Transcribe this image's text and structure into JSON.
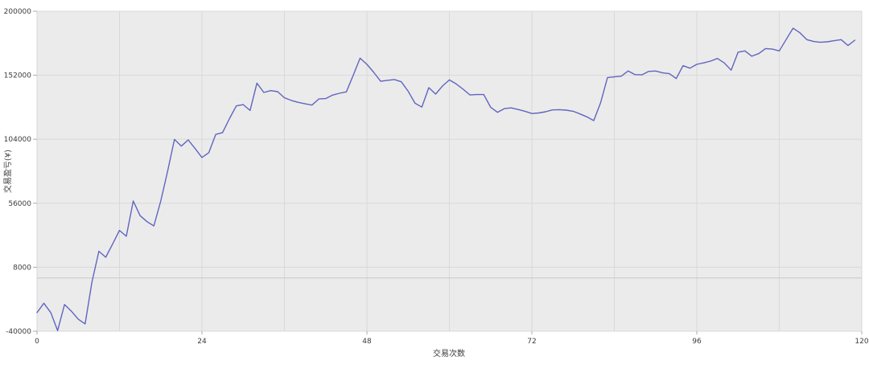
{
  "chart_data": {
    "type": "line",
    "title": "",
    "xlabel": "交易次数",
    "ylabel": "交易盈亏(¥)",
    "xlim": [
      0,
      120
    ],
    "ylim": [
      -40000,
      200000
    ],
    "xticks": [
      0,
      24,
      48,
      72,
      96,
      120
    ],
    "yticks": [
      200000,
      152000,
      104000,
      56000,
      8000,
      -40000
    ],
    "x_minor_grid_step": 12,
    "zero_line_value": 0,
    "grid": true,
    "legend_position": "none",
    "line_color": "#5f65bf",
    "plot_bg_color": "#ebebeb",
    "grid_color": "#d9d9d9",
    "zero_line_color": "#cccccc",
    "tick_color": "#aaaaaa",
    "x": [
      0,
      1,
      2,
      3,
      4,
      5,
      6,
      7,
      8,
      9,
      10,
      11,
      12,
      13,
      14,
      15,
      16,
      17,
      18,
      19,
      20,
      21,
      22,
      23,
      24,
      25,
      26,
      27,
      28,
      29,
      30,
      31,
      32,
      33,
      34,
      35,
      36,
      37,
      38,
      39,
      40,
      41,
      42,
      43,
      44,
      45,
      46,
      47,
      48,
      49,
      50,
      51,
      52,
      53,
      54,
      55,
      56,
      57,
      58,
      59,
      60,
      61,
      62,
      63,
      64,
      65,
      66,
      67,
      68,
      69,
      70,
      71,
      72,
      73,
      74,
      75,
      76,
      77,
      78,
      79,
      80,
      81,
      82,
      83,
      84,
      85,
      86,
      87,
      88,
      89,
      90,
      91,
      92,
      93,
      94,
      95,
      96,
      97,
      98,
      99,
      100,
      101,
      102,
      103,
      104,
      105,
      106,
      107,
      108,
      109,
      110,
      111,
      112,
      113,
      114,
      115,
      116,
      117,
      118,
      119
    ],
    "y": [
      -26000,
      -19000,
      -26000,
      -39500,
      -20000,
      -25000,
      -31000,
      -34500,
      -3000,
      20000,
      15500,
      25500,
      35600,
      31200,
      57700,
      46700,
      42200,
      39000,
      57700,
      80000,
      103900,
      98900,
      103500,
      97000,
      90300,
      93900,
      107600,
      109000,
      119500,
      129000,
      130000,
      125600,
      146100,
      139100,
      140500,
      139700,
      135100,
      133100,
      131700,
      130600,
      129600,
      134200,
      134500,
      137100,
      138500,
      139500,
      151800,
      164800,
      160200,
      154200,
      147500,
      148200,
      148800,
      147100,
      140000,
      131000,
      128100,
      142700,
      137900,
      144000,
      148500,
      145500,
      141500,
      137200,
      137500,
      137500,
      128000,
      124200,
      127000,
      127500,
      126300,
      125000,
      123300,
      123700,
      124600,
      126000,
      126200,
      125800,
      125000,
      123000,
      120800,
      118000,
      131300,
      150300,
      150800,
      151300,
      155200,
      152500,
      152300,
      154900,
      155200,
      153800,
      153200,
      149500,
      159200,
      157300,
      160200,
      161300,
      162600,
      164600,
      161200,
      155800,
      169300,
      170300,
      166300,
      168200,
      172000,
      171600,
      170300,
      178800,
      187300,
      183900,
      178700,
      177300,
      176700,
      177100,
      177900,
      178700,
      174300,
      178300
    ]
  }
}
